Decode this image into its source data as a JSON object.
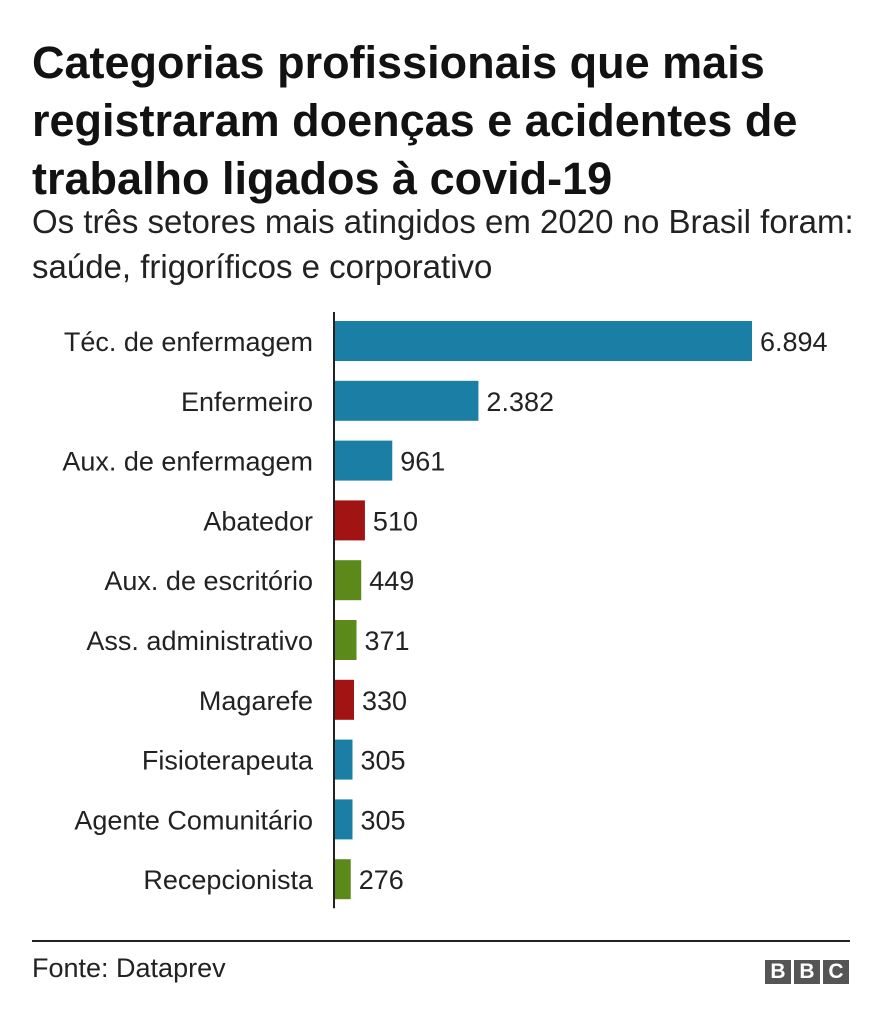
{
  "header": {
    "title": "Categorias profissionais que mais registraram doenças e acidentes de trabalho ligados à covid-19",
    "subtitle": "Os três setores mais atingidos em 2020 no Brasil foram: saúde, frigoríficos e corporativo"
  },
  "colors": {
    "saude": "#1b7fa5",
    "frigorificos": "#a21414",
    "corporativo": "#5c8a1a",
    "axis": "#222222"
  },
  "chart_data": {
    "type": "bar",
    "orientation": "horizontal",
    "title": "Categorias profissionais que mais registraram doenças e acidentes de trabalho ligados à covid-19",
    "subtitle": "Os três setores mais atingidos em 2020 no Brasil foram: saúde, frigoríficos e corporativo",
    "categories": [
      "Téc. de enfermagem",
      "Enfermeiro",
      "Aux. de enfermagem",
      "Abatedor",
      "Aux. de escritório",
      "Ass. administrativo",
      "Magarefe",
      "Fisioterapeuta",
      "Agente Comunitário",
      "Recepcionista"
    ],
    "values": [
      6894,
      2382,
      961,
      510,
      449,
      371,
      330,
      305,
      305,
      276
    ],
    "value_labels": [
      "6.894",
      "2.382",
      "961",
      "510",
      "449",
      "371",
      "330",
      "305",
      "305",
      "276"
    ],
    "sector": [
      "saude",
      "saude",
      "saude",
      "frigorificos",
      "corporativo",
      "corporativo",
      "frigorificos",
      "saude",
      "saude",
      "corporativo"
    ],
    "xlim": [
      0,
      6894
    ],
    "grid": false,
    "legend": "none"
  },
  "footer": {
    "source": "Fonte: Dataprev",
    "logo": [
      "B",
      "B",
      "C"
    ]
  }
}
